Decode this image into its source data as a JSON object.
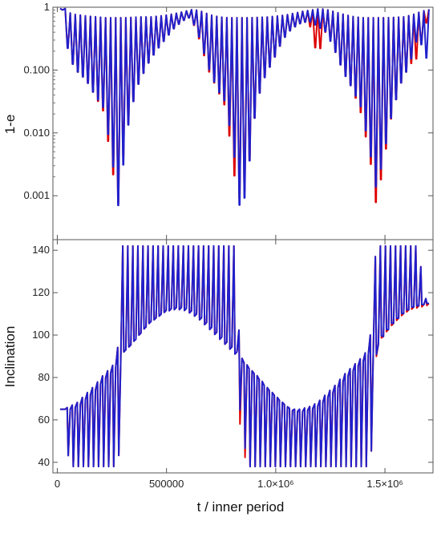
{
  "chart_data": [
    {
      "type": "line",
      "title": "",
      "xlabel": "",
      "ylabel": "1-e",
      "yscale": "log",
      "xlim": [
        -20000,
        1720000
      ],
      "ylim": [
        0.0002,
        1
      ],
      "yticks": [
        {
          "value": 1,
          "label": "1"
        },
        {
          "value": 0.1,
          "label": "0.100"
        },
        {
          "value": 0.01,
          "label": "0.010"
        },
        {
          "value": 0.001,
          "label": "0.001"
        }
      ],
      "series": [
        {
          "color": "#dd0000",
          "x": [
            0,
            20000,
            40000,
            80000,
            120000,
            160000,
            200000,
            240000,
            265000,
            290000,
            320000,
            360000,
            400000,
            440000,
            480000,
            520000,
            560000,
            600000,
            640000,
            680000,
            720000,
            760000,
            800000,
            830000,
            860000,
            900000,
            940000,
            980000,
            1020000,
            1060000,
            1100000,
            1140000,
            1180000,
            1220000,
            1260000,
            1300000,
            1340000,
            1380000,
            1420000,
            1450000,
            1480000,
            1520000,
            1560000,
            1600000,
            1640000,
            1680000
          ],
          "min": [
            0.92,
            0.9,
            0.16,
            0.095,
            0.07,
            0.04,
            0.022,
            0.0028,
            0.00065,
            0.004,
            0.02,
            0.06,
            0.12,
            0.2,
            0.3,
            0.45,
            0.6,
            0.7,
            0.3,
            0.1,
            0.05,
            0.025,
            0.002,
            0.0007,
            0.002,
            0.03,
            0.08,
            0.15,
            0.3,
            0.45,
            0.55,
            0.6,
            0.16,
            0.45,
            0.2,
            0.09,
            0.05,
            0.02,
            0.004,
            0.00065,
            0.003,
            0.02,
            0.06,
            0.12,
            0.16,
            0.6
          ],
          "max": [
            0.95,
            0.95,
            0.78,
            0.75,
            0.72,
            0.7,
            0.68,
            0.68,
            0.68,
            0.68,
            0.69,
            0.7,
            0.7,
            0.72,
            0.75,
            0.8,
            0.86,
            0.93,
            0.85,
            0.75,
            0.7,
            0.68,
            0.68,
            0.68,
            0.68,
            0.69,
            0.7,
            0.72,
            0.75,
            0.8,
            0.86,
            0.9,
            0.95,
            0.9,
            0.82,
            0.75,
            0.7,
            0.68,
            0.68,
            0.68,
            0.68,
            0.69,
            0.7,
            0.75,
            0.85,
            0.93
          ]
        },
        {
          "color": "#2020cc",
          "x": [
            0,
            20000,
            40000,
            80000,
            120000,
            160000,
            200000,
            240000,
            265000,
            290000,
            320000,
            360000,
            400000,
            440000,
            480000,
            520000,
            560000,
            600000,
            640000,
            680000,
            720000,
            760000,
            800000,
            830000,
            860000,
            900000,
            940000,
            980000,
            1020000,
            1060000,
            1100000,
            1140000,
            1180000,
            1220000,
            1260000,
            1300000,
            1340000,
            1380000,
            1420000,
            1450000,
            1480000,
            1520000,
            1560000,
            1600000,
            1640000,
            1680000
          ],
          "min": [
            0.92,
            0.9,
            0.16,
            0.095,
            0.07,
            0.04,
            0.025,
            0.004,
            0.0006,
            0.003,
            0.02,
            0.06,
            0.12,
            0.2,
            0.3,
            0.45,
            0.6,
            0.7,
            0.32,
            0.11,
            0.05,
            0.03,
            0.004,
            0.0004,
            0.002,
            0.03,
            0.08,
            0.15,
            0.3,
            0.45,
            0.55,
            0.6,
            0.5,
            0.4,
            0.2,
            0.09,
            0.05,
            0.025,
            0.005,
            0.0012,
            0.004,
            0.02,
            0.06,
            0.12,
            0.35,
            0.15
          ],
          "max": [
            0.95,
            0.95,
            0.78,
            0.75,
            0.72,
            0.7,
            0.68,
            0.68,
            0.68,
            0.68,
            0.69,
            0.7,
            0.7,
            0.72,
            0.75,
            0.8,
            0.86,
            0.93,
            0.85,
            0.75,
            0.7,
            0.68,
            0.68,
            0.68,
            0.68,
            0.69,
            0.7,
            0.72,
            0.75,
            0.8,
            0.86,
            0.9,
            0.95,
            0.9,
            0.82,
            0.75,
            0.7,
            0.68,
            0.68,
            0.68,
            0.68,
            0.69,
            0.7,
            0.75,
            0.85,
            0.93
          ]
        }
      ]
    },
    {
      "type": "line",
      "title": "",
      "xlabel": "t / inner period",
      "ylabel": "Inclination",
      "yscale": "linear",
      "xlim": [
        -20000,
        1720000
      ],
      "ylim": [
        35,
        145
      ],
      "xticks": [
        {
          "value": 0,
          "label": "0"
        },
        {
          "value": 500000,
          "label": "500000"
        },
        {
          "value": 1000000,
          "label": "1.0×10⁶"
        },
        {
          "value": 1500000,
          "label": "1.5×10⁶"
        }
      ],
      "yticks": [
        {
          "value": 40,
          "label": "40"
        },
        {
          "value": 60,
          "label": "60"
        },
        {
          "value": 80,
          "label": "80"
        },
        {
          "value": 100,
          "label": "100"
        },
        {
          "value": 120,
          "label": "120"
        },
        {
          "value": 140,
          "label": "140"
        }
      ],
      "series": [
        {
          "color": "#dd0000",
          "x": [
            0,
            20000,
            40000,
            80000,
            120000,
            160000,
            200000,
            240000,
            265000,
            290000,
            320000,
            360000,
            400000,
            440000,
            480000,
            520000,
            560000,
            600000,
            640000,
            680000,
            720000,
            760000,
            800000,
            830000,
            860000,
            900000,
            940000,
            980000,
            1020000,
            1060000,
            1100000,
            1140000,
            1180000,
            1220000,
            1260000,
            1300000,
            1340000,
            1380000,
            1420000,
            1450000,
            1480000,
            1520000,
            1560000,
            1600000,
            1640000,
            1680000
          ],
          "base": [
            65,
            65,
            65,
            67,
            71,
            75,
            80,
            84,
            88,
            93,
            96,
            101,
            106,
            109,
            112,
            113,
            113,
            111,
            108,
            104,
            100,
            96,
            92,
            88,
            84,
            80,
            75,
            71,
            67,
            64,
            64,
            65,
            67,
            71,
            75,
            80,
            84,
            88,
            93,
            96,
            101,
            106,
            110,
            113,
            114,
            115
          ],
          "low": [
            65,
            65,
            38,
            38,
            38,
            38,
            38,
            38,
            38,
            92,
            95,
            100,
            105,
            108,
            111,
            112,
            112,
            110,
            107,
            103,
            99,
            95,
            91,
            47,
            38,
            38,
            38,
            38,
            38,
            38,
            38,
            38,
            38,
            38,
            38,
            38,
            38,
            38,
            38,
            96,
            100,
            105,
            109,
            112,
            113,
            114
          ],
          "high": [
            65,
            65,
            66,
            68,
            72,
            76,
            81,
            85,
            89,
            142,
            142,
            142,
            142,
            142,
            142,
            142,
            142,
            142,
            142,
            142,
            142,
            142,
            142,
            89,
            85,
            81,
            76,
            72,
            68,
            65,
            65,
            66,
            68,
            72,
            76,
            81,
            85,
            89,
            94,
            142,
            142,
            142,
            142,
            142,
            142,
            116
          ]
        },
        {
          "color": "#2020cc",
          "x": [
            0,
            20000,
            40000,
            80000,
            120000,
            160000,
            200000,
            240000,
            265000,
            290000,
            320000,
            360000,
            400000,
            440000,
            480000,
            520000,
            560000,
            600000,
            640000,
            680000,
            720000,
            760000,
            800000,
            830000,
            860000,
            900000,
            940000,
            980000,
            1020000,
            1060000,
            1100000,
            1140000,
            1180000,
            1220000,
            1260000,
            1300000,
            1340000,
            1380000,
            1420000,
            1450000,
            1480000,
            1520000,
            1560000,
            1600000,
            1640000,
            1680000
          ],
          "base": [
            65,
            65,
            65,
            67,
            71,
            75,
            80,
            84,
            88,
            93,
            96,
            101,
            106,
            109,
            112,
            113,
            113,
            111,
            108,
            104,
            100,
            96,
            92,
            88,
            84,
            80,
            75,
            71,
            67,
            64,
            64,
            65,
            67,
            71,
            75,
            80,
            84,
            88,
            93,
            96,
            101,
            106,
            110,
            113,
            114,
            115
          ],
          "low": [
            65,
            65,
            38,
            38,
            38,
            38,
            38,
            38,
            38,
            92,
            95,
            100,
            105,
            108,
            111,
            112,
            112,
            110,
            107,
            103,
            99,
            95,
            91,
            56,
            38,
            38,
            38,
            38,
            38,
            38,
            38,
            38,
            38,
            38,
            38,
            38,
            38,
            38,
            38,
            97,
            101,
            106,
            110,
            113,
            114,
            115
          ],
          "high": [
            65,
            65,
            66,
            68,
            72,
            76,
            81,
            85,
            89,
            142,
            142,
            142,
            142,
            142,
            142,
            142,
            142,
            142,
            142,
            142,
            142,
            142,
            142,
            89,
            85,
            81,
            76,
            72,
            68,
            65,
            65,
            66,
            68,
            72,
            76,
            81,
            85,
            89,
            94,
            142,
            142,
            142,
            142,
            142,
            142,
            116
          ]
        }
      ]
    }
  ]
}
